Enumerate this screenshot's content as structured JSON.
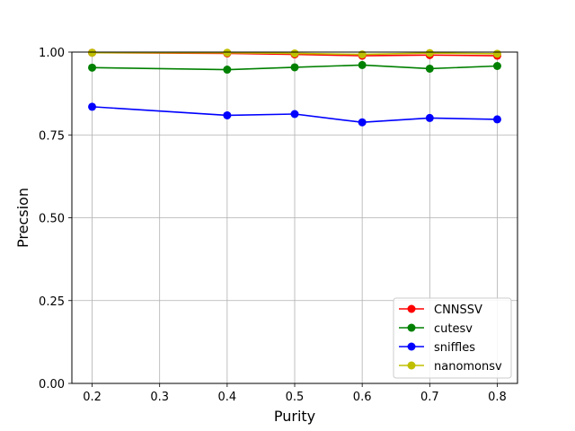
{
  "chart_data": {
    "type": "line",
    "title": "",
    "xlabel": "Purity",
    "ylabel": "Precsion",
    "x": [
      0.2,
      0.4,
      0.5,
      0.6,
      0.7,
      0.8
    ],
    "xlim": [
      0.17,
      0.83
    ],
    "ylim": [
      0.0,
      1.0
    ],
    "xticks": [
      0.2,
      0.3,
      0.4,
      0.5,
      0.6,
      0.7,
      0.8
    ],
    "yticks": [
      0.0,
      0.25,
      0.5,
      0.75,
      1.0
    ],
    "xtick_labels": [
      "0.2",
      "0.3",
      "0.4",
      "0.5",
      "0.6",
      "0.7",
      "0.8"
    ],
    "ytick_labels": [
      "0.00",
      "0.25",
      "0.50",
      "0.75",
      "1.00"
    ],
    "grid": true,
    "legend_position": "lower-right",
    "series": [
      {
        "name": "CNNSSV",
        "color": "#ff0000",
        "values": [
          0.998,
          0.996,
          0.993,
          0.989,
          0.991,
          0.989
        ]
      },
      {
        "name": "cutesv",
        "color": "#008000",
        "values": [
          0.953,
          0.947,
          0.954,
          0.961,
          0.95,
          0.958
        ]
      },
      {
        "name": "sniffles",
        "color": "#0000ff",
        "values": [
          0.835,
          0.809,
          0.813,
          0.788,
          0.801,
          0.797
        ]
      },
      {
        "name": "nanomonsv",
        "color": "#bfbf00",
        "values": [
          0.998,
          0.998,
          0.996,
          0.993,
          0.997,
          0.995
        ]
      }
    ]
  }
}
